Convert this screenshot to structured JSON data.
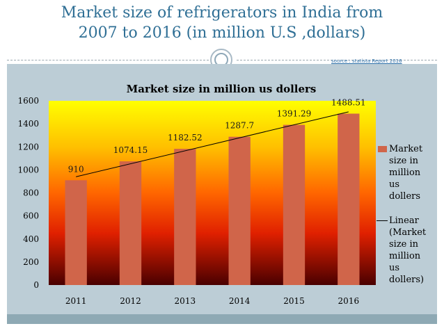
{
  "slide": {
    "title_line1": "Market size of refrigerators in India from",
    "title_line2": "2007 to 2016 (in million U.S ,dollars)",
    "source": "source : statista Report 2016"
  },
  "colors": {
    "bar": "#d0654a",
    "title": "#2f6f95",
    "panel": "#bccdd6"
  },
  "chart_data": {
    "type": "bar",
    "title": "Market size in million us dollers",
    "categories": [
      "2011",
      "2012",
      "2013",
      "2014",
      "2015",
      "2016"
    ],
    "series": [
      {
        "name": "Market size in million us dollers",
        "values": [
          910,
          1074.15,
          1182.52,
          1287.7,
          1391.29,
          1488.51
        ]
      }
    ],
    "value_labels": [
      "910",
      "1074.15",
      "1182.52",
      "1287.7",
      "1391.29",
      "1488.51"
    ],
    "trendline": {
      "type": "linear",
      "name": "Linear (Market size in million us dollers)"
    },
    "ylim": [
      0,
      1600
    ],
    "yticks": [
      "0",
      "200",
      "400",
      "600",
      "800",
      "1000",
      "1200",
      "1400",
      "1600"
    ],
    "legend_position": "right",
    "background": "vertical gradient yellow to red to dark red"
  },
  "legend": {
    "bar_label": "Market size in million us dollers",
    "line_label": "Linear (Market size in million us dollers)"
  }
}
